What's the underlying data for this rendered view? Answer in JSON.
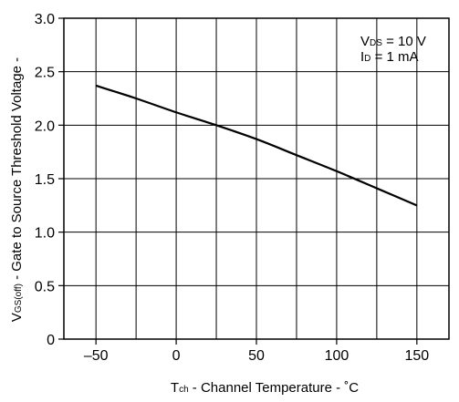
{
  "chart_data": {
    "type": "line",
    "title": "",
    "x_axis": {
      "label_main": "T",
      "label_sub": "ch",
      "label_rest": " -  Channel Temperature  -  ˚C",
      "range": [
        -70,
        170
      ],
      "ticks": [
        -50,
        0,
        50,
        100,
        150
      ],
      "tick_labels": [
        "–50",
        "0",
        "50",
        "100",
        "150"
      ]
    },
    "y_axis": {
      "label_main": "V",
      "label_sub": "GS(off)",
      "label_rest": "  -  Gate to Source Threshold Voltage -",
      "range": [
        0,
        3.0
      ],
      "ticks": [
        0,
        0.5,
        1.0,
        1.5,
        2.0,
        2.5,
        3.0
      ],
      "tick_labels": [
        "0",
        "0.5",
        "1.0",
        "1.5",
        "2.0",
        "2.5",
        "3.0"
      ]
    },
    "grid": true,
    "annotations": [
      {
        "main": "V",
        "sub": "DS",
        "rest": " = 10 V"
      },
      {
        "main": "I",
        "sub": "D",
        "rest": " = 1 mA"
      }
    ],
    "series": [
      {
        "x": [
          -50,
          -25,
          0,
          25,
          50,
          75,
          100,
          125,
          150
        ],
        "y": [
          2.37,
          2.25,
          2.12,
          2.0,
          1.87,
          1.72,
          1.57,
          1.41,
          1.25
        ]
      }
    ]
  }
}
